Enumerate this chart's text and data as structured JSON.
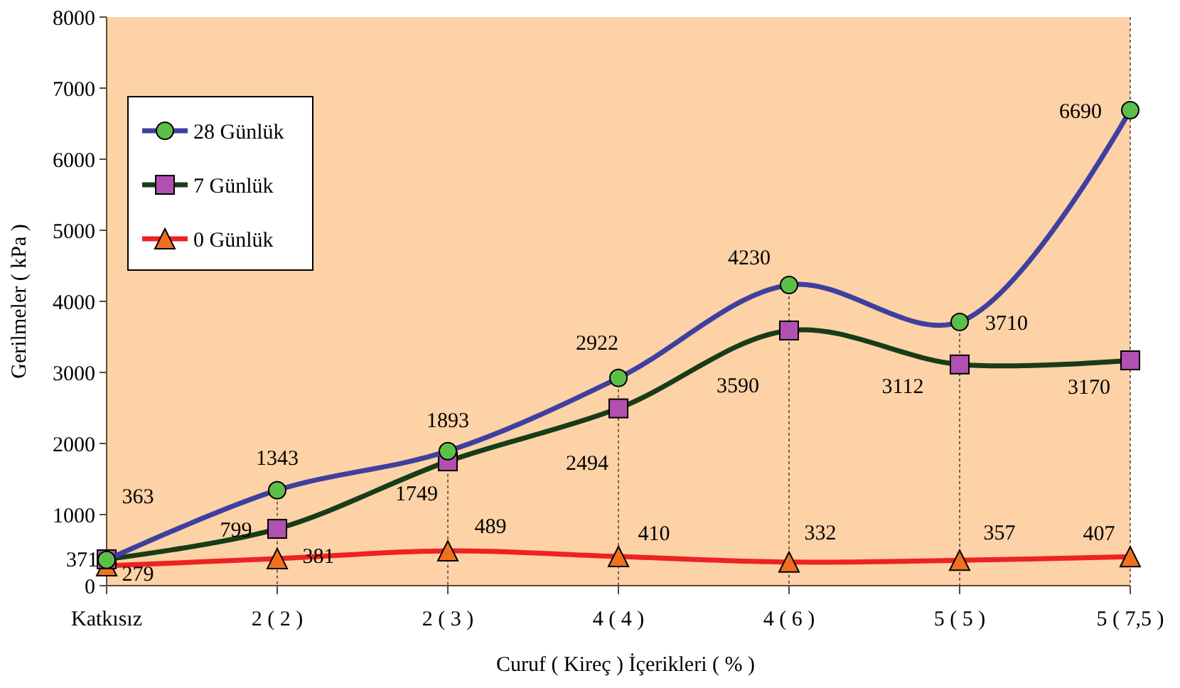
{
  "chart_data": {
    "type": "line",
    "xlabel": "Curuf ( Kireç ) İçerikleri  ( % )",
    "ylabel": "Gerilmeler ( kPa )",
    "categories": [
      "Katkısız",
      "2 ( 2 )",
      "2 ( 3 )",
      "4 ( 4 )",
      "4 ( 6 )",
      "5 ( 5 )",
      "5 ( 7,5 )"
    ],
    "ylim": [
      0,
      8000
    ],
    "yticks": [
      0,
      1000,
      2000,
      3000,
      4000,
      5000,
      6000,
      7000,
      8000
    ],
    "grid": false,
    "legend": "top left",
    "data_labels": true,
    "series": [
      {
        "name": "28 Günlük",
        "color": "#3f3f9f",
        "marker": "circle",
        "values": [
          363,
          1343,
          1893,
          2922,
          4230,
          3710,
          6690
        ]
      },
      {
        "name": "7 Günlük",
        "color": "#173c17",
        "marker": "square",
        "values": [
          371,
          799,
          1749,
          2494,
          3590,
          3112,
          3170
        ]
      },
      {
        "name": "0 Günlük",
        "color": "#ee2222",
        "marker": "triangle",
        "values": [
          279,
          381,
          489,
          410,
          332,
          357,
          407
        ]
      }
    ]
  }
}
